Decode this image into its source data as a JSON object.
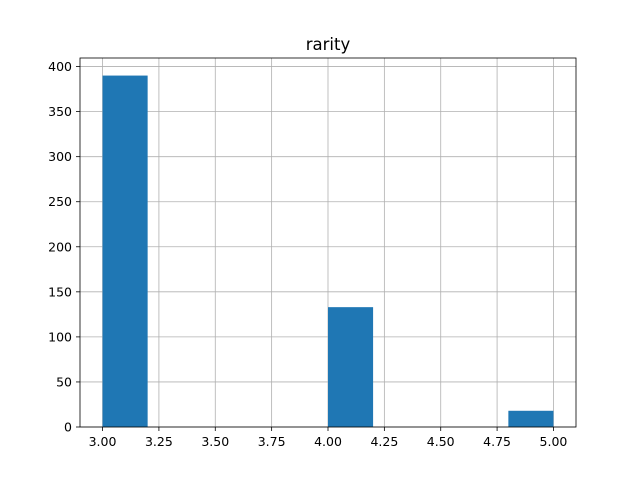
{
  "chart_data": {
    "type": "histogram",
    "title": "rarity",
    "xlabel": "",
    "ylabel": "",
    "xlim": [
      2.9,
      5.1
    ],
    "ylim": [
      0,
      409.5
    ],
    "grid": true,
    "bar_color": "#1f77b4",
    "grid_color": "#b0b0b0",
    "bins": [
      {
        "x0": 3.0,
        "x1": 3.2,
        "count": 390
      },
      {
        "x0": 3.2,
        "x1": 3.4,
        "count": 0
      },
      {
        "x0": 3.4,
        "x1": 3.6,
        "count": 0
      },
      {
        "x0": 3.6,
        "x1": 3.8,
        "count": 0
      },
      {
        "x0": 3.8,
        "x1": 4.0,
        "count": 0
      },
      {
        "x0": 4.0,
        "x1": 4.2,
        "count": 133
      },
      {
        "x0": 4.2,
        "x1": 4.4,
        "count": 0
      },
      {
        "x0": 4.4,
        "x1": 4.6,
        "count": 0
      },
      {
        "x0": 4.6,
        "x1": 4.8,
        "count": 0
      },
      {
        "x0": 4.8,
        "x1": 5.0,
        "count": 18
      }
    ],
    "x_ticks": [
      {
        "value": 3.0,
        "label": "3.00"
      },
      {
        "value": 3.25,
        "label": "3.25"
      },
      {
        "value": 3.5,
        "label": "3.50"
      },
      {
        "value": 3.75,
        "label": "3.75"
      },
      {
        "value": 4.0,
        "label": "4.00"
      },
      {
        "value": 4.25,
        "label": "4.25"
      },
      {
        "value": 4.5,
        "label": "4.50"
      },
      {
        "value": 4.75,
        "label": "4.75"
      },
      {
        "value": 5.0,
        "label": "5.00"
      }
    ],
    "y_ticks": [
      {
        "value": 0,
        "label": "0"
      },
      {
        "value": 50,
        "label": "50"
      },
      {
        "value": 100,
        "label": "100"
      },
      {
        "value": 150,
        "label": "150"
      },
      {
        "value": 200,
        "label": "200"
      },
      {
        "value": 250,
        "label": "250"
      },
      {
        "value": 300,
        "label": "300"
      },
      {
        "value": 350,
        "label": "350"
      },
      {
        "value": 400,
        "label": "400"
      }
    ]
  }
}
